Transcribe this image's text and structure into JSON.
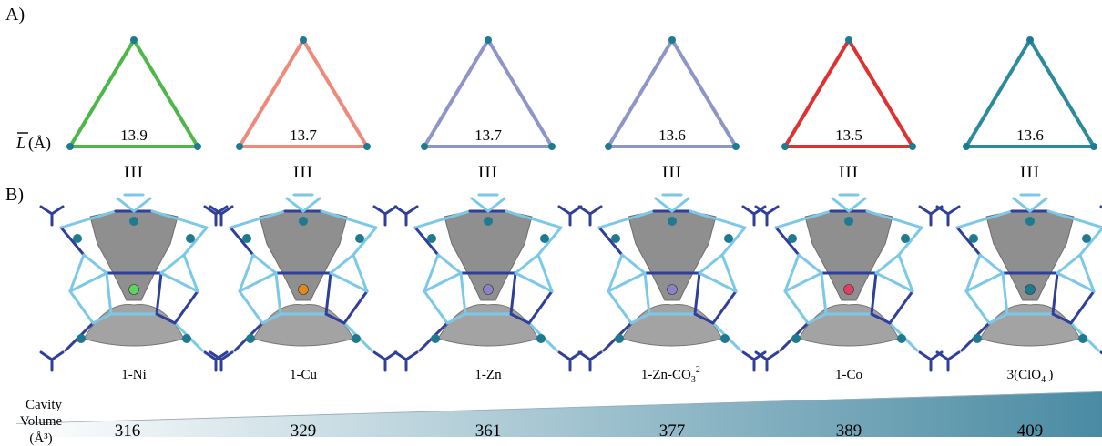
{
  "panel_a": {
    "label": "A)",
    "axis_label_symbol": "L",
    "axis_label_unit": "(Å)",
    "items": [
      {
        "value": "13.9",
        "color": "#4db848",
        "mark": "III"
      },
      {
        "value": "13.7",
        "color": "#ef8a7a",
        "mark": "III"
      },
      {
        "value": "13.7",
        "color": "#8e95c9",
        "mark": "III"
      },
      {
        "value": "13.6",
        "color": "#8e95c9",
        "mark": "III"
      },
      {
        "value": "13.5",
        "color": "#e03030",
        "mark": "III"
      },
      {
        "value": "13.6",
        "color": "#2b8a9c",
        "mark": "III"
      }
    ]
  },
  "panel_b": {
    "label": "B)",
    "structures": [
      {
        "label": "1-Ni",
        "center_atom_color": "#5fd35f"
      },
      {
        "label": "1-Cu",
        "center_atom_color": "#e08a1e"
      },
      {
        "label": "1-Zn",
        "center_atom_color": "#8b83c8"
      },
      {
        "label": "1-Zn-CO",
        "sub": "3",
        "sup": "2-",
        "center_atom_color": "#8b83c8"
      },
      {
        "label": "1-Co",
        "center_atom_color": "#e04060"
      },
      {
        "label": "3(ClO",
        "sub": "4",
        "sup": "-",
        "suffix": ")",
        "center_atom_color": "#1f7a90"
      }
    ]
  },
  "cavity": {
    "label_line1": "Cavity",
    "label_line2": "Volume",
    "label_line3": "(Å³)",
    "values": [
      "316",
      "329",
      "361",
      "377",
      "389",
      "409"
    ],
    "gradient_start": "#ffffff",
    "gradient_end": "#4a8ba3"
  },
  "colors": {
    "node": "#1f7a90",
    "framework_light": "#7cc8e8",
    "framework_dark": "#2f3f9a",
    "cavity_surface": "#8f8f8f"
  }
}
